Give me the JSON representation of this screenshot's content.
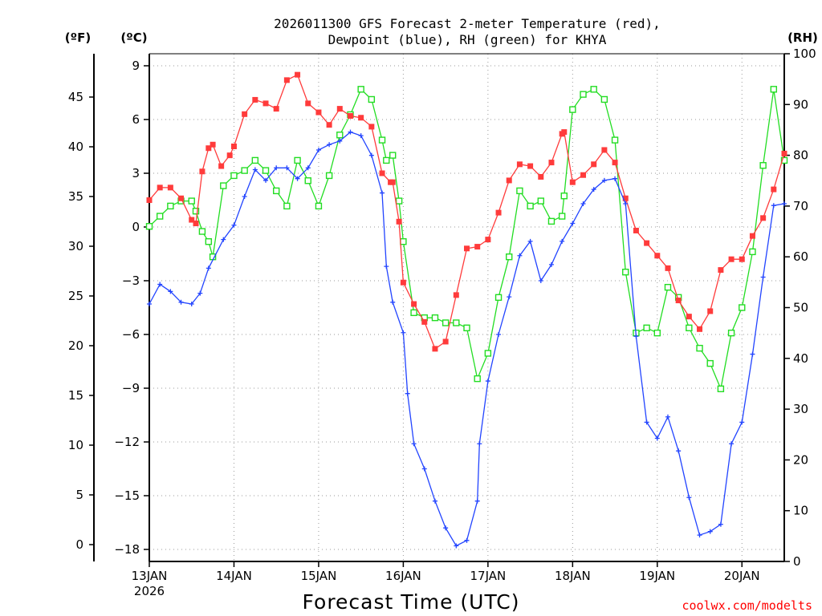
{
  "chart_data": {
    "type": "line",
    "title_line1": "2026011300 GFS Forecast 2-meter Temperature (red),",
    "title_line2": "Dewpoint (blue), RH (green) for KHYA",
    "xlabel": "Forecast Time (UTC)",
    "credit": "coolwx.com/modelts",
    "unit_left_f": "(ºF)",
    "unit_left_c": "(ºC)",
    "unit_right": "(RH)",
    "x_range_days": [
      0,
      7.5
    ],
    "ylim_c": [
      -19,
      9.6
    ],
    "ylim_rh": [
      0,
      100
    ],
    "x_ticks": [
      {
        "day": 0,
        "label": "13JAN",
        "sub": "2026"
      },
      {
        "day": 1,
        "label": "14JAN",
        "sub": ""
      },
      {
        "day": 2,
        "label": "15JAN",
        "sub": ""
      },
      {
        "day": 3,
        "label": "16JAN",
        "sub": ""
      },
      {
        "day": 4,
        "label": "17JAN",
        "sub": ""
      },
      {
        "day": 5,
        "label": "18JAN",
        "sub": ""
      },
      {
        "day": 6,
        "label": "19JAN",
        "sub": ""
      },
      {
        "day": 7,
        "label": "20JAN",
        "sub": ""
      }
    ],
    "y_ticks_c": [
      "9",
      "6",
      "3",
      "0",
      "−3",
      "−6",
      "−9",
      "−12",
      "−15",
      "−18"
    ],
    "y_ticks_f": [
      "45",
      "40",
      "35",
      "30",
      "25",
      "20",
      "15",
      "10",
      "5",
      "0"
    ],
    "y_ticks_rh": [
      "100",
      "90",
      "80",
      "70",
      "60",
      "50",
      "40",
      "30",
      "20",
      "10",
      "0"
    ],
    "series": [
      {
        "name": "Temperature",
        "color": "#ff3b3b",
        "marker": "filled-square",
        "units": "°C",
        "x": [
          0,
          0.5,
          1,
          1.5,
          2,
          2.5,
          3,
          3.5,
          4,
          4.5,
          5,
          5.5,
          6,
          6.5,
          7,
          7.5
        ],
        "points": [
          [
            0,
            1.5
          ],
          [
            0.125,
            2.2
          ],
          [
            0.25,
            2.2
          ],
          [
            0.375,
            1.6
          ],
          [
            0.5,
            0.4
          ],
          [
            0.55,
            0.2
          ],
          [
            0.625,
            3.1
          ],
          [
            0.7,
            4.4
          ],
          [
            0.75,
            4.6
          ],
          [
            0.85,
            3.4
          ],
          [
            0.95,
            4.0
          ],
          [
            1.0,
            4.5
          ],
          [
            1.125,
            6.3
          ],
          [
            1.25,
            7.1
          ],
          [
            1.375,
            6.9
          ],
          [
            1.5,
            6.6
          ],
          [
            1.625,
            8.2
          ],
          [
            1.75,
            8.5
          ],
          [
            1.875,
            6.9
          ],
          [
            2.0,
            6.4
          ],
          [
            2.125,
            5.7
          ],
          [
            2.25,
            6.6
          ],
          [
            2.375,
            6.2
          ],
          [
            2.5,
            6.1
          ],
          [
            2.625,
            5.6
          ],
          [
            2.75,
            3.0
          ],
          [
            2.85,
            2.5
          ],
          [
            2.875,
            2.5
          ],
          [
            2.95,
            0.3
          ],
          [
            3.0,
            -3.1
          ],
          [
            3.125,
            -4.3
          ],
          [
            3.25,
            -5.3
          ],
          [
            3.375,
            -6.8
          ],
          [
            3.5,
            -6.4
          ],
          [
            3.625,
            -3.8
          ],
          [
            3.75,
            -1.2
          ],
          [
            3.875,
            -1.1
          ],
          [
            4.0,
            -0.7
          ],
          [
            4.125,
            0.8
          ],
          [
            4.25,
            2.6
          ],
          [
            4.375,
            3.5
          ],
          [
            4.5,
            3.4
          ],
          [
            4.625,
            2.8
          ],
          [
            4.75,
            3.6
          ],
          [
            4.875,
            5.2
          ],
          [
            4.9,
            5.3
          ],
          [
            5.0,
            2.5
          ],
          [
            5.125,
            2.9
          ],
          [
            5.25,
            3.5
          ],
          [
            5.375,
            4.3
          ],
          [
            5.5,
            3.6
          ],
          [
            5.625,
            1.6
          ],
          [
            5.75,
            -0.2
          ],
          [
            5.875,
            -0.9
          ],
          [
            6.0,
            -1.6
          ],
          [
            6.125,
            -2.3
          ],
          [
            6.25,
            -4.1
          ],
          [
            6.375,
            -5.0
          ],
          [
            6.5,
            -5.7
          ],
          [
            6.625,
            -4.7
          ],
          [
            6.75,
            -2.4
          ],
          [
            6.875,
            -1.8
          ],
          [
            7.0,
            -1.8
          ],
          [
            7.125,
            -0.5
          ],
          [
            7.25,
            0.5
          ],
          [
            7.375,
            2.1
          ],
          [
            7.5,
            4.1
          ]
        ]
      },
      {
        "name": "Dewpoint",
        "color": "#2244ff",
        "marker": "plus",
        "units": "°C",
        "points": [
          [
            0,
            -4.3
          ],
          [
            0.125,
            -3.2
          ],
          [
            0.25,
            -3.6
          ],
          [
            0.375,
            -4.2
          ],
          [
            0.5,
            -4.3
          ],
          [
            0.6,
            -3.7
          ],
          [
            0.7,
            -2.3
          ],
          [
            0.875,
            -0.7
          ],
          [
            1.0,
            0.1
          ],
          [
            1.125,
            1.7
          ],
          [
            1.25,
            3.2
          ],
          [
            1.375,
            2.6
          ],
          [
            1.5,
            3.3
          ],
          [
            1.625,
            3.3
          ],
          [
            1.75,
            2.7
          ],
          [
            1.875,
            3.3
          ],
          [
            2.0,
            4.3
          ],
          [
            2.125,
            4.6
          ],
          [
            2.25,
            4.8
          ],
          [
            2.375,
            5.3
          ],
          [
            2.5,
            5.1
          ],
          [
            2.625,
            4.0
          ],
          [
            2.75,
            1.9
          ],
          [
            2.8,
            -2.2
          ],
          [
            2.875,
            -4.2
          ],
          [
            3.0,
            -5.9
          ],
          [
            3.05,
            -9.3
          ],
          [
            3.125,
            -12.1
          ],
          [
            3.25,
            -13.5
          ],
          [
            3.375,
            -15.3
          ],
          [
            3.5,
            -16.8
          ],
          [
            3.625,
            -17.8
          ],
          [
            3.75,
            -17.5
          ],
          [
            3.875,
            -15.3
          ],
          [
            3.9,
            -12.1
          ],
          [
            4.0,
            -8.6
          ],
          [
            4.125,
            -6.0
          ],
          [
            4.25,
            -3.9
          ],
          [
            4.375,
            -1.6
          ],
          [
            4.5,
            -0.8
          ],
          [
            4.625,
            -3.0
          ],
          [
            4.75,
            -2.1
          ],
          [
            4.875,
            -0.8
          ],
          [
            5.0,
            0.2
          ],
          [
            5.125,
            1.3
          ],
          [
            5.25,
            2.1
          ],
          [
            5.375,
            2.6
          ],
          [
            5.5,
            2.7
          ],
          [
            5.625,
            1.3
          ],
          [
            5.75,
            -6.1
          ],
          [
            5.875,
            -10.9
          ],
          [
            6.0,
            -11.8
          ],
          [
            6.125,
            -10.6
          ],
          [
            6.25,
            -12.5
          ],
          [
            6.375,
            -15.1
          ],
          [
            6.5,
            -17.2
          ],
          [
            6.625,
            -17.0
          ],
          [
            6.75,
            -16.6
          ],
          [
            6.875,
            -12.1
          ],
          [
            7.0,
            -10.9
          ],
          [
            7.125,
            -7.1
          ],
          [
            7.25,
            -2.8
          ],
          [
            7.375,
            1.2
          ],
          [
            7.5,
            1.3
          ]
        ]
      },
      {
        "name": "RH",
        "color": "#22dd22",
        "marker": "open-square",
        "units": "%",
        "points": [
          [
            0,
            66
          ],
          [
            0.125,
            68
          ],
          [
            0.25,
            70
          ],
          [
            0.375,
            71
          ],
          [
            0.5,
            71
          ],
          [
            0.55,
            69
          ],
          [
            0.625,
            65
          ],
          [
            0.7,
            63
          ],
          [
            0.75,
            60
          ],
          [
            0.875,
            74
          ],
          [
            1.0,
            76
          ],
          [
            1.125,
            77
          ],
          [
            1.25,
            79
          ],
          [
            1.375,
            77
          ],
          [
            1.5,
            73
          ],
          [
            1.625,
            70
          ],
          [
            1.75,
            79
          ],
          [
            1.875,
            75
          ],
          [
            2.0,
            70
          ],
          [
            2.125,
            76
          ],
          [
            2.25,
            84
          ],
          [
            2.375,
            88
          ],
          [
            2.5,
            93
          ],
          [
            2.625,
            91
          ],
          [
            2.75,
            83
          ],
          [
            2.8,
            79
          ],
          [
            2.875,
            80
          ],
          [
            2.95,
            71
          ],
          [
            3.0,
            63
          ],
          [
            3.125,
            49
          ],
          [
            3.25,
            48
          ],
          [
            3.375,
            48
          ],
          [
            3.5,
            47
          ],
          [
            3.625,
            47
          ],
          [
            3.75,
            46
          ],
          [
            3.875,
            36
          ],
          [
            4.0,
            41
          ],
          [
            4.125,
            52
          ],
          [
            4.25,
            60
          ],
          [
            4.375,
            73
          ],
          [
            4.5,
            70
          ],
          [
            4.625,
            71
          ],
          [
            4.75,
            67
          ],
          [
            4.875,
            68
          ],
          [
            4.9,
            72
          ],
          [
            5.0,
            89
          ],
          [
            5.125,
            92
          ],
          [
            5.25,
            93
          ],
          [
            5.375,
            91
          ],
          [
            5.5,
            83
          ],
          [
            5.625,
            57
          ],
          [
            5.75,
            45
          ],
          [
            5.875,
            46
          ],
          [
            6.0,
            45
          ],
          [
            6.125,
            54
          ],
          [
            6.25,
            52
          ],
          [
            6.375,
            46
          ],
          [
            6.5,
            42
          ],
          [
            6.625,
            39
          ],
          [
            6.75,
            34
          ],
          [
            6.875,
            45
          ],
          [
            7.0,
            50
          ],
          [
            7.125,
            61
          ],
          [
            7.25,
            78
          ],
          [
            7.375,
            93
          ],
          [
            7.5,
            79
          ]
        ]
      }
    ]
  }
}
